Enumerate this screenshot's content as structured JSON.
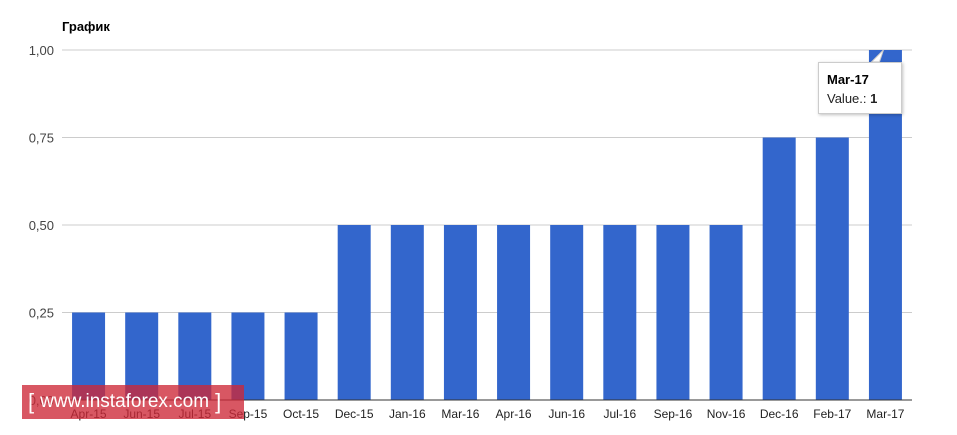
{
  "title": "График",
  "colors": {
    "bar": "#3366cc",
    "grid": "#cccccc",
    "axis": "#333333",
    "watermark": "#cd2837"
  },
  "tooltip": {
    "label": "Mar-17",
    "value_name": "Value.:",
    "value": "1"
  },
  "watermark": {
    "text": "www.instaforex.com",
    "open": "[",
    "close": "]"
  },
  "chart_data": {
    "type": "bar",
    "title": "График",
    "categories": [
      "Apr-15",
      "Jun-15",
      "Jul-15",
      "Sep-15",
      "Oct-15",
      "Dec-15",
      "Jan-16",
      "Mar-16",
      "Apr-16",
      "Jun-16",
      "Jul-16",
      "Sep-16",
      "Nov-16",
      "Dec-16",
      "Feb-17",
      "Mar-17"
    ],
    "series": [
      {
        "values": [
          0.25,
          0.25,
          0.25,
          0.25,
          0.25,
          0.5,
          0.5,
          0.5,
          0.5,
          0.5,
          0.5,
          0.5,
          0.5,
          0.75,
          0.75,
          1
        ]
      }
    ],
    "y_ticks": [
      "0,00",
      "0,25",
      "0,50",
      "0,75",
      "1,00"
    ],
    "ylim": [
      0,
      1
    ],
    "grid": true,
    "legend": "none"
  }
}
